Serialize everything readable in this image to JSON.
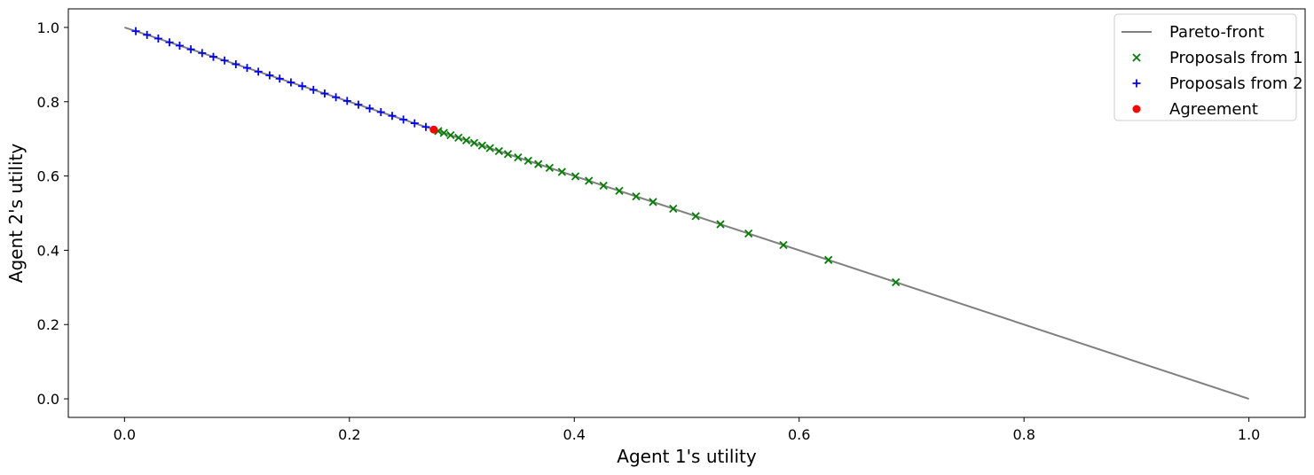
{
  "chart_data": {
    "type": "scatter",
    "xlabel": "Agent 1's utility",
    "ylabel": "Agent 2's utility",
    "xlim": [
      -0.05,
      1.05
    ],
    "ylim": [
      -0.05,
      1.05
    ],
    "xticks": [
      0.0,
      0.2,
      0.4,
      0.6,
      0.8,
      1.0
    ],
    "yticks": [
      0.0,
      0.2,
      0.4,
      0.6,
      0.8,
      1.0
    ],
    "tick_format": "0.0",
    "grid": false,
    "legend_position": "top-right",
    "series": [
      {
        "name": "Pareto-front",
        "kind": "line",
        "color": "#808080",
        "x": [
          0.0,
          1.0
        ],
        "y": [
          1.0,
          0.0
        ]
      },
      {
        "name": "Proposals from 1",
        "kind": "scatter",
        "marker": "x",
        "color": "#008000",
        "x": [
          0.686,
          0.626,
          0.586,
          0.555,
          0.53,
          0.508,
          0.488,
          0.47,
          0.455,
          0.44,
          0.426,
          0.413,
          0.401,
          0.389,
          0.378,
          0.368,
          0.359,
          0.35,
          0.341,
          0.333,
          0.325,
          0.318,
          0.311,
          0.304,
          0.297,
          0.29,
          0.284,
          0.279
        ],
        "y": [
          0.314,
          0.374,
          0.414,
          0.445,
          0.47,
          0.492,
          0.512,
          0.53,
          0.545,
          0.56,
          0.574,
          0.587,
          0.599,
          0.611,
          0.622,
          0.632,
          0.641,
          0.65,
          0.659,
          0.667,
          0.675,
          0.682,
          0.689,
          0.696,
          0.703,
          0.71,
          0.716,
          0.721
        ]
      },
      {
        "name": "Proposals from 2",
        "kind": "scatter",
        "marker": "+",
        "color": "#0000ff",
        "x": [
          0.01,
          0.02,
          0.03,
          0.04,
          0.049,
          0.059,
          0.069,
          0.079,
          0.089,
          0.099,
          0.109,
          0.119,
          0.129,
          0.138,
          0.148,
          0.158,
          0.168,
          0.178,
          0.188,
          0.198,
          0.208,
          0.218,
          0.228,
          0.238,
          0.248,
          0.258,
          0.268
        ],
        "y": [
          0.99,
          0.98,
          0.97,
          0.96,
          0.951,
          0.941,
          0.931,
          0.921,
          0.911,
          0.901,
          0.891,
          0.881,
          0.871,
          0.862,
          0.852,
          0.842,
          0.832,
          0.822,
          0.812,
          0.802,
          0.792,
          0.782,
          0.772,
          0.762,
          0.752,
          0.742,
          0.732
        ]
      },
      {
        "name": "Agreement",
        "kind": "scatter",
        "marker": "o",
        "color": "#ff0000",
        "x": [
          0.275
        ],
        "y": [
          0.725
        ]
      }
    ]
  }
}
